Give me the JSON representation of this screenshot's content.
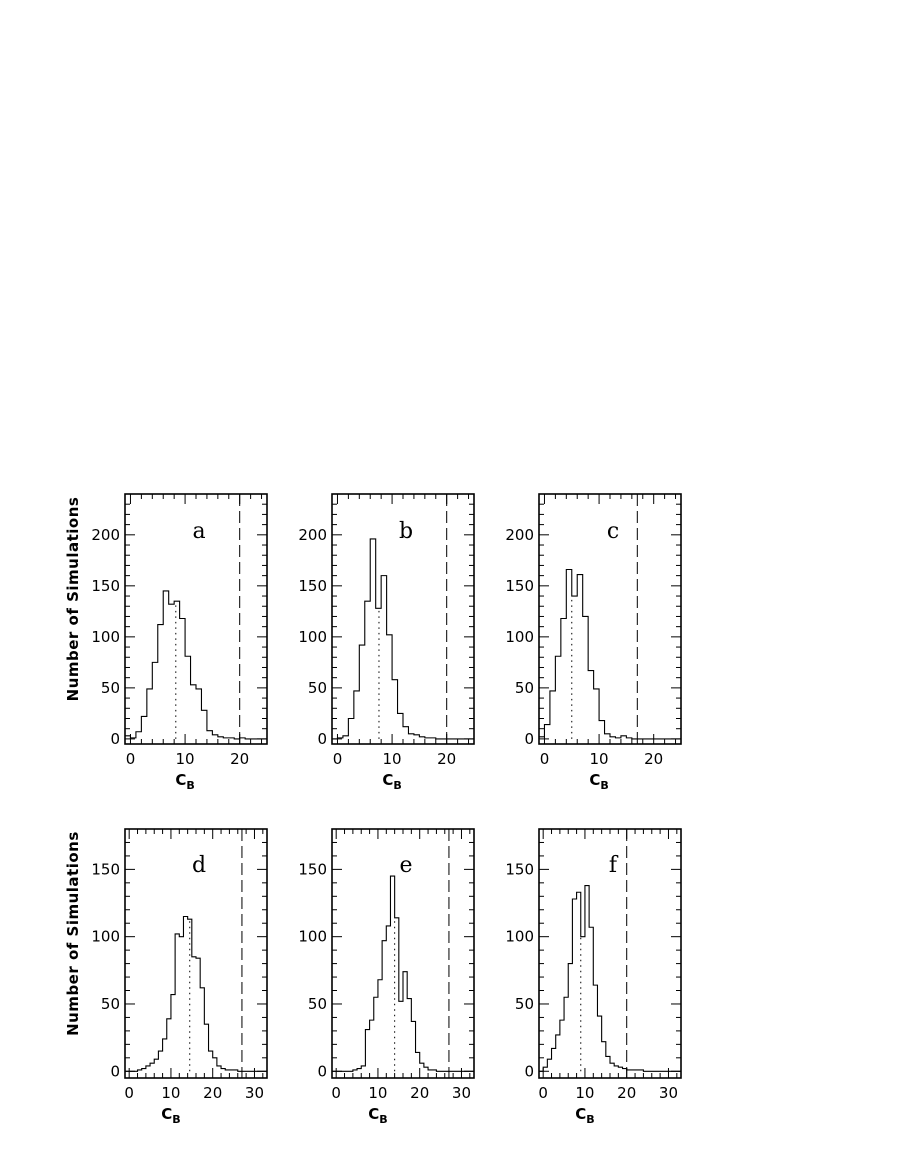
{
  "chart_data": [
    {
      "type": "bar",
      "panel": "a",
      "xlabel_main": "C",
      "xlabel_sub": "B",
      "ylabel": "Number of Simulations",
      "xlim": [
        -1,
        25
      ],
      "ylim": [
        -5,
        240
      ],
      "xticks": [
        0,
        10,
        20
      ],
      "yticks": [
        0,
        50,
        100,
        150,
        200
      ],
      "bin_edges_start": -1,
      "bin_width": 1,
      "values": [
        3,
        1,
        7,
        22,
        49,
        75,
        112,
        145,
        132,
        135,
        118,
        81,
        53,
        49,
        28,
        8,
        4,
        2,
        1,
        1,
        0,
        1,
        0,
        0,
        0,
        0
      ],
      "mean_line": 8.3,
      "observed_line": 20
    },
    {
      "type": "bar",
      "panel": "b",
      "xlabel_main": "C",
      "xlabel_sub": "B",
      "ylabel": "",
      "xlim": [
        -1,
        25
      ],
      "ylim": [
        -5,
        240
      ],
      "xticks": [
        0,
        10,
        20
      ],
      "yticks": [
        0,
        50,
        100,
        150,
        200
      ],
      "bin_edges_start": -1,
      "bin_width": 1,
      "values": [
        0,
        1,
        3,
        20,
        47,
        92,
        135,
        196,
        128,
        160,
        102,
        58,
        25,
        12,
        5,
        4,
        2,
        1,
        1,
        0,
        0,
        0,
        0,
        0,
        0,
        0
      ],
      "mean_line": 7.6,
      "observed_line": 20
    },
    {
      "type": "bar",
      "panel": "c",
      "xlabel_main": "C",
      "xlabel_sub": "B",
      "ylabel": "",
      "xlim": [
        -1,
        25
      ],
      "ylim": [
        -5,
        240
      ],
      "xticks": [
        0,
        10,
        20
      ],
      "yticks": [
        0,
        50,
        100,
        150,
        200
      ],
      "bin_edges_start": -1,
      "bin_width": 1,
      "values": [
        2,
        14,
        47,
        81,
        118,
        166,
        140,
        161,
        120,
        67,
        49,
        18,
        5,
        2,
        1,
        3,
        1,
        0,
        0,
        0,
        0,
        0,
        0,
        0,
        0,
        0
      ],
      "mean_line": 5.0,
      "observed_line": 17
    },
    {
      "type": "bar",
      "panel": "d",
      "xlabel_main": "C",
      "xlabel_sub": "B",
      "ylabel": "Number of Simulations",
      "xlim": [
        -1,
        33
      ],
      "ylim": [
        -5,
        180
      ],
      "xticks": [
        0,
        10,
        20,
        30
      ],
      "yticks": [
        0,
        50,
        100,
        150
      ],
      "bin_edges_start": -1,
      "bin_width": 1,
      "values": [
        0,
        0,
        0,
        1,
        2,
        4,
        6,
        9,
        15,
        24,
        39,
        57,
        102,
        100,
        115,
        113,
        85,
        84,
        62,
        35,
        15,
        10,
        4,
        2,
        1,
        1,
        1,
        0,
        0,
        0,
        0,
        0,
        0,
        0
      ],
      "mean_line": 14.5,
      "observed_line": 27
    },
    {
      "type": "bar",
      "panel": "e",
      "xlabel_main": "C",
      "xlabel_sub": "B",
      "ylabel": "",
      "xlim": [
        -1,
        33
      ],
      "ylim": [
        -5,
        180
      ],
      "xticks": [
        0,
        10,
        20,
        30
      ],
      "yticks": [
        0,
        50,
        100,
        150
      ],
      "bin_edges_start": -1,
      "bin_width": 1,
      "values": [
        0,
        0,
        0,
        0,
        0,
        1,
        2,
        4,
        31,
        38,
        55,
        68,
        97,
        108,
        145,
        114,
        52,
        74,
        54,
        37,
        14,
        6,
        3,
        1,
        1,
        0,
        0,
        0,
        0,
        0,
        0,
        0,
        0,
        0
      ],
      "mean_line": 14.0,
      "observed_line": 27
    },
    {
      "type": "bar",
      "panel": "f",
      "xlabel_main": "C",
      "xlabel_sub": "B",
      "ylabel": "",
      "xlim": [
        -1,
        33
      ],
      "ylim": [
        -5,
        180
      ],
      "xticks": [
        0,
        10,
        20,
        30
      ],
      "yticks": [
        0,
        50,
        100,
        150
      ],
      "bin_edges_start": -1,
      "bin_width": 1,
      "values": [
        0,
        3,
        9,
        17,
        27,
        38,
        55,
        80,
        128,
        133,
        100,
        138,
        107,
        64,
        41,
        22,
        11,
        6,
        4,
        3,
        2,
        1,
        1,
        1,
        1,
        0,
        0,
        0,
        0,
        0,
        0,
        0,
        0,
        0
      ],
      "mean_line": 9.0,
      "observed_line": 20
    }
  ]
}
